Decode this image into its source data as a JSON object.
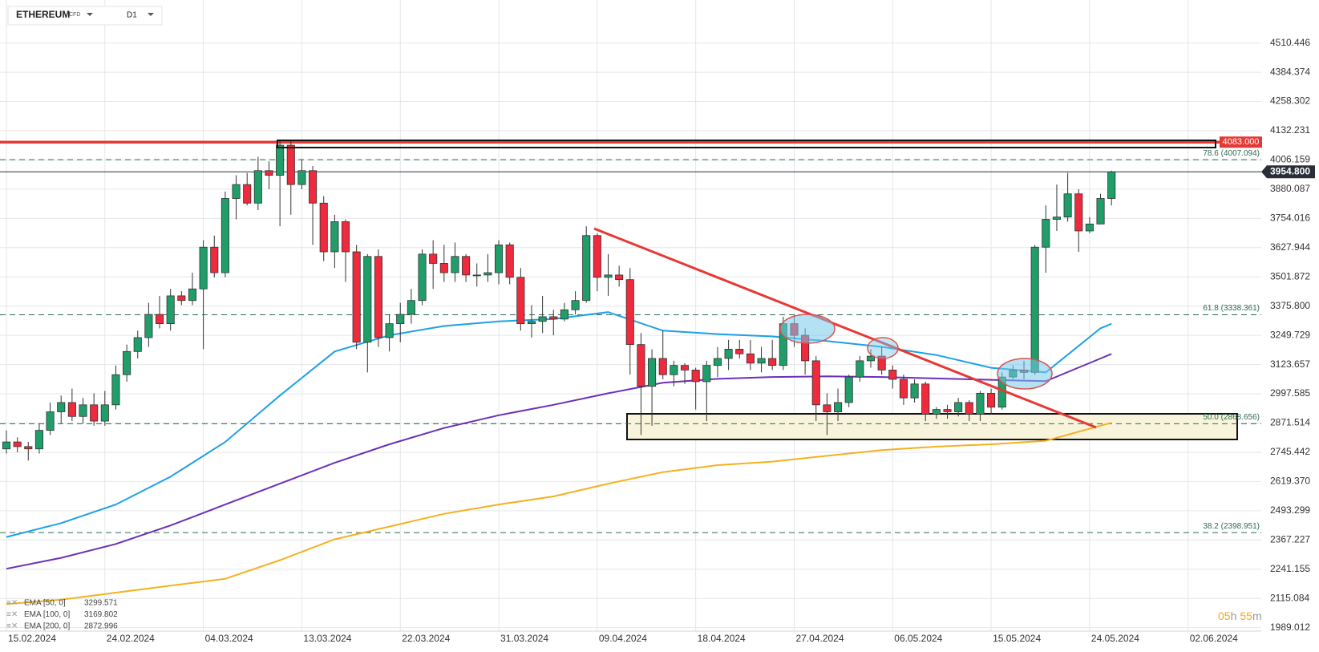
{
  "chart_data": {
    "type": "candlestick",
    "instrument": "ETHEREUM",
    "instrument_type": "CFD",
    "timeframe": "D1",
    "up_color": "#1f9e6a",
    "down_color": "#ee2a3c",
    "x": [
      "15.02.2024",
      "16.02.2024",
      "17.02.2024",
      "18.02.2024",
      "19.02.2024",
      "20.02.2024",
      "21.02.2024",
      "22.02.2024",
      "23.02.2024",
      "24.02.2024",
      "25.02.2024",
      "26.02.2024",
      "27.02.2024",
      "28.02.2024",
      "29.02.2024",
      "01.03.2024",
      "02.03.2024",
      "03.03.2024",
      "04.03.2024",
      "05.03.2024",
      "06.03.2024",
      "07.03.2024",
      "08.03.2024",
      "09.03.2024",
      "10.03.2024",
      "11.03.2024",
      "12.03.2024",
      "13.03.2024",
      "14.03.2024",
      "15.03.2024",
      "16.03.2024",
      "17.03.2024",
      "18.03.2024",
      "19.03.2024",
      "20.03.2024",
      "21.03.2024",
      "22.03.2024",
      "23.03.2024",
      "24.03.2024",
      "25.03.2024",
      "26.03.2024",
      "27.03.2024",
      "28.03.2024",
      "29.03.2024",
      "30.03.2024",
      "31.03.2024",
      "01.04.2024",
      "02.04.2024",
      "03.04.2024",
      "04.04.2024",
      "05.04.2024",
      "06.04.2024",
      "07.04.2024",
      "08.04.2024",
      "09.04.2024",
      "10.04.2024",
      "11.04.2024",
      "12.04.2024",
      "13.04.2024",
      "14.04.2024",
      "15.04.2024",
      "16.04.2024",
      "17.04.2024",
      "18.04.2024",
      "19.04.2024",
      "20.04.2024",
      "21.04.2024",
      "22.04.2024",
      "23.04.2024",
      "24.04.2024",
      "25.04.2024",
      "26.04.2024",
      "27.04.2024",
      "28.04.2024",
      "29.04.2024",
      "30.04.2024",
      "01.05.2024",
      "02.05.2024",
      "03.05.2024",
      "04.05.2024",
      "05.05.2024",
      "06.05.2024",
      "07.05.2024",
      "08.05.2024",
      "09.05.2024",
      "10.05.2024",
      "11.05.2024",
      "12.05.2024",
      "13.05.2024",
      "14.05.2024",
      "15.05.2024",
      "16.05.2024",
      "17.05.2024",
      "18.05.2024",
      "19.05.2024",
      "20.05.2024",
      "21.05.2024",
      "22.05.2024",
      "23.05.2024",
      "24.05.2024",
      "25.05.2024",
      "26.05.2024"
    ],
    "open": [
      2760,
      2790,
      2770,
      2760,
      2840,
      2920,
      2960,
      2900,
      2950,
      2880,
      2950,
      3080,
      3180,
      3240,
      3340,
      3300,
      3420,
      3400,
      3450,
      3630,
      3520,
      3840,
      3900,
      3820,
      3960,
      3940,
      4070,
      3900,
      3960,
      3820,
      3610,
      3740,
      3610,
      3220,
      3590,
      3240,
      3300,
      3340,
      3400,
      3600,
      3560,
      3520,
      3590,
      3510,
      3510,
      3520,
      3640,
      3500,
      3300,
      3310,
      3330,
      3320,
      3360,
      3400,
      3680,
      3500,
      3510,
      3490,
      3210,
      3030,
      3150,
      3080,
      3120,
      3100,
      3050,
      3120,
      3150,
      3190,
      3170,
      3130,
      3150,
      3120,
      3300,
      3250,
      3140,
      2950,
      2920,
      2960,
      3070,
      3140,
      3160,
      3100,
      3060,
      2980,
      3040,
      2910,
      2930,
      2920,
      2960,
      2910,
      3000,
      2940,
      3070,
      3100,
      3090,
      3630,
      3750,
      3760,
      3860,
      3700,
      3730,
      3840
    ],
    "high": [
      2840,
      2810,
      2790,
      2870,
      2960,
      2990,
      3020,
      2980,
      3000,
      3010,
      3120,
      3210,
      3270,
      3390,
      3420,
      3450,
      3440,
      3520,
      3660,
      3680,
      3870,
      3940,
      3950,
      4020,
      4000,
      4090,
      4090,
      4010,
      3980,
      3850,
      3770,
      3750,
      3640,
      3600,
      3620,
      3340,
      3390,
      3450,
      3620,
      3660,
      3640,
      3650,
      3600,
      3560,
      3600,
      3660,
      3650,
      3540,
      3380,
      3420,
      3360,
      3390,
      3440,
      3720,
      3690,
      3600,
      3550,
      3540,
      3260,
      3190,
      3270,
      3140,
      3130,
      3110,
      3140,
      3200,
      3230,
      3230,
      3230,
      3200,
      3230,
      3330,
      3340,
      3280,
      3160,
      3000,
      3020,
      3080,
      3160,
      3190,
      3200,
      3120,
      3080,
      3060,
      3050,
      2940,
      2950,
      2980,
      2970,
      3010,
      3020,
      3090,
      3120,
      3140,
      3640,
      3810,
      3900,
      3950,
      3880,
      3760,
      3860,
      3960
    ],
    "low": [
      2740,
      2745,
      2710,
      2740,
      2820,
      2870,
      2880,
      2870,
      2860,
      2860,
      2930,
      3050,
      3150,
      3200,
      3280,
      3270,
      3380,
      3380,
      3190,
      3500,
      3500,
      3750,
      3810,
      3790,
      3880,
      3720,
      3770,
      3880,
      3640,
      3570,
      3540,
      3480,
      3190,
      3090,
      3200,
      3180,
      3220,
      3300,
      3380,
      3450,
      3480,
      3480,
      3480,
      3460,
      3480,
      3470,
      3470,
      3270,
      3240,
      3260,
      3250,
      3310,
      3340,
      3390,
      3440,
      3420,
      3460,
      3080,
      2820,
      2860,
      3060,
      3030,
      3040,
      2930,
      2880,
      3070,
      3100,
      3150,
      3100,
      3090,
      3100,
      3100,
      3200,
      3080,
      2880,
      2820,
      2880,
      2940,
      3050,
      3110,
      3080,
      3020,
      2950,
      2960,
      2880,
      2890,
      2890,
      2900,
      2880,
      2880,
      2910,
      2930,
      3060,
      3060,
      3080,
      3520,
      3700,
      3740,
      3610,
      3690,
      3740,
      3810
    ],
    "close": [
      2790,
      2770,
      2760,
      2840,
      2920,
      2960,
      2900,
      2950,
      2880,
      2950,
      3080,
      3180,
      3240,
      3340,
      3300,
      3420,
      3400,
      3450,
      3630,
      3520,
      3840,
      3900,
      3820,
      3960,
      3940,
      4070,
      3900,
      3960,
      3820,
      3610,
      3740,
      3610,
      3220,
      3590,
      3240,
      3300,
      3340,
      3400,
      3600,
      3560,
      3520,
      3590,
      3510,
      3510,
      3520,
      3640,
      3500,
      3300,
      3310,
      3330,
      3320,
      3360,
      3400,
      3680,
      3500,
      3510,
      3490,
      3210,
      3030,
      3150,
      3080,
      3120,
      3100,
      3050,
      3120,
      3150,
      3190,
      3170,
      3130,
      3150,
      3120,
      3300,
      3250,
      3140,
      2950,
      2920,
      2960,
      3070,
      3140,
      3160,
      3100,
      3060,
      2980,
      3040,
      2910,
      2930,
      2920,
      2960,
      2910,
      3000,
      2940,
      3070,
      3100,
      3090,
      3630,
      3750,
      3760,
      3860,
      3700,
      3730,
      3840,
      3954.8
    ],
    "xlim": [
      "15.02.2024",
      "04.06.2024"
    ],
    "xticks": [
      "15.02.2024",
      "24.02.2024",
      "04.03.2024",
      "13.03.2024",
      "22.03.2024",
      "31.03.2024",
      "09.04.2024",
      "18.04.2024",
      "27.04.2024",
      "06.05.2024",
      "15.05.2024",
      "24.05.2024",
      "02.06.2024"
    ],
    "ylim": [
      1974,
      4696
    ],
    "yticks": [
      4510.446,
      4384.374,
      4258.302,
      4132.231,
      4006.159,
      3880.087,
      3754.016,
      3627.944,
      3501.872,
      {
        "value": 3375.8,
        "label": "3375.800"
      },
      3249.729,
      3123.657,
      2997.585,
      2871.514,
      2745.442,
      {
        "value": 2619.37,
        "label": "2619.370"
      },
      2493.299,
      2367.227,
      2241.155,
      2115.084,
      1989.012
    ],
    "grid": true,
    "series": [
      {
        "name": "EMA [50, 0]",
        "color": "#1ea0e6",
        "x": [
          "15.02.2024",
          "20.02.2024",
          "25.02.2024",
          "01.03.2024",
          "06.03.2024",
          "11.03.2024",
          "16.03.2024",
          "21.03.2024",
          "26.03.2024",
          "31.03.2024",
          "05.04.2024",
          "10.04.2024",
          "15.04.2024",
          "20.04.2024",
          "25.04.2024",
          "30.04.2024",
          "05.05.2024",
          "10.05.2024",
          "15.05.2024",
          "20.05.2024",
          "25.05.2024",
          "26.05.2024"
        ],
        "values": [
          2380,
          2440,
          2520,
          2640,
          2790,
          2990,
          3180,
          3250,
          3290,
          3310,
          3320,
          3350,
          3270,
          3255,
          3245,
          3225,
          3200,
          3165,
          3110,
          3090,
          3280,
          3299.571
        ]
      },
      {
        "name": "EMA [100, 0]",
        "color": "#6a30b8",
        "x": [
          "15.02.2024",
          "20.02.2024",
          "25.02.2024",
          "01.03.2024",
          "06.03.2024",
          "11.03.2024",
          "16.03.2024",
          "21.03.2024",
          "26.03.2024",
          "31.03.2024",
          "05.04.2024",
          "10.04.2024",
          "15.04.2024",
          "20.04.2024",
          "25.04.2024",
          "30.04.2024",
          "05.05.2024",
          "10.05.2024",
          "15.05.2024",
          "20.05.2024",
          "25.05.2024",
          "26.05.2024"
        ],
        "values": [
          2243,
          2290,
          2350,
          2430,
          2520,
          2610,
          2700,
          2780,
          2850,
          2905,
          2950,
          3000,
          3045,
          3062,
          3070,
          3073,
          3070,
          3064,
          3058,
          3052,
          3150,
          3169.802
        ]
      },
      {
        "name": "EMA [200, 0]",
        "color": "#f5b11e",
        "x": [
          "15.02.2024",
          "20.02.2024",
          "25.02.2024",
          "01.03.2024",
          "06.03.2024",
          "11.03.2024",
          "16.03.2024",
          "21.03.2024",
          "26.03.2024",
          "31.03.2024",
          "05.04.2024",
          "10.04.2024",
          "15.04.2024",
          "20.04.2024",
          "25.04.2024",
          "30.04.2024",
          "05.05.2024",
          "10.05.2024",
          "15.05.2024",
          "20.05.2024",
          "25.05.2024",
          "26.05.2024"
        ],
        "values": [
          2091,
          2110,
          2140,
          2170,
          2200,
          2280,
          2370,
          2425,
          2480,
          2520,
          2555,
          2610,
          2660,
          2690,
          2705,
          2730,
          2755,
          2770,
          2780,
          2795,
          2860,
          2872.996
        ]
      }
    ],
    "fib_levels": [
      {
        "label": "78.6 (4007.094)",
        "value": 4007.094
      },
      {
        "label": "61.8 (3338.361)",
        "value": 3338.361
      },
      {
        "label": "50.0 (2868.656)",
        "value": 2868.656
      },
      {
        "label": "38.2 (2398.951)",
        "value": 2398.951
      }
    ],
    "resistance": {
      "value": 4083,
      "label": "4083.000",
      "color": "#e53935"
    },
    "last_price": {
      "value": 3954.8,
      "label": "3954.800"
    },
    "timer": [
      "05",
      "h",
      "55",
      "m"
    ]
  }
}
